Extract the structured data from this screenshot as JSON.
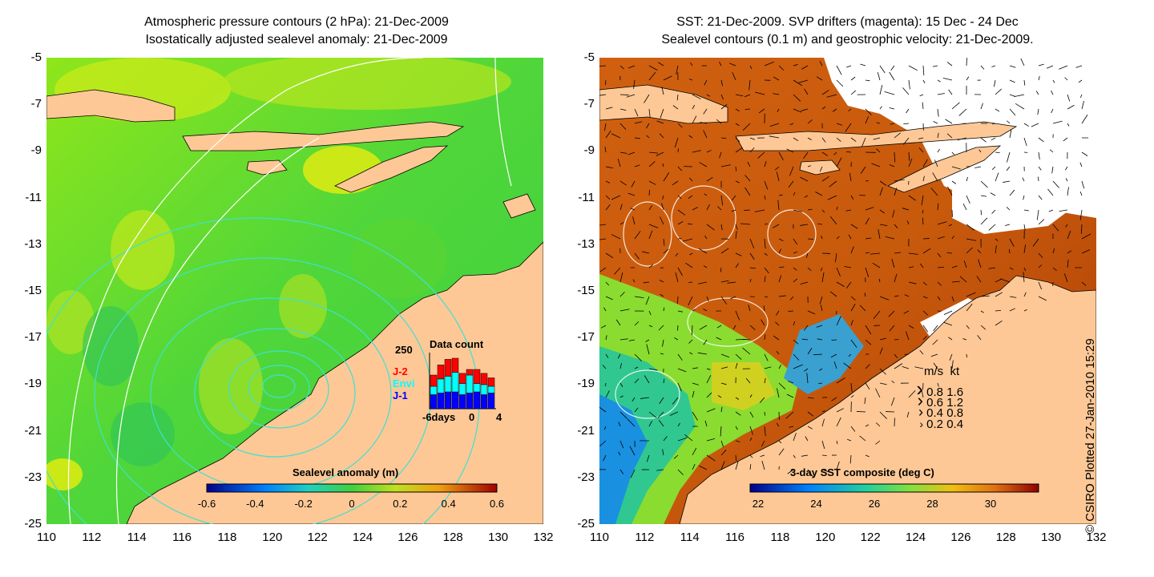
{
  "colors": {
    "land": "#fdc896",
    "cyan_contour": "#40e0d0",
    "white_contour": "#ffffff",
    "drifter": "#ff00ff",
    "j2": "#ff0000",
    "envi": "#00ffff",
    "j1": "#0000ff"
  },
  "left_panel": {
    "title_line1": "Atmospheric pressure contours (2 hPa): 21-Dec-2009",
    "title_line2": "Isostatically adjusted sealevel anomaly: 21-Dec-2009",
    "y_ticks": [
      "-5",
      "-7",
      "-9",
      "-11",
      "-13",
      "-15",
      "-17",
      "-19",
      "-21",
      "-23",
      "-25"
    ],
    "x_ticks": [
      "110",
      "112",
      "114",
      "116",
      "118",
      "120",
      "122",
      "124",
      "126",
      "128",
      "130",
      "132"
    ],
    "colorbar": {
      "title": "Sealevel anomaly (m)",
      "ticks": [
        "-0.6",
        "-0.4",
        "-0.2",
        "0",
        "0.2",
        "0.4",
        "0.6"
      ]
    },
    "histogram": {
      "title": "Data count",
      "ymax_label": "250",
      "x_labels": [
        "-6days",
        "0",
        "4"
      ],
      "legend": [
        "J-2",
        "Envi",
        "J-1"
      ],
      "bars": [
        {
          "j1": 0.25,
          "envi": 0.15,
          "j2": 0.2
        },
        {
          "j1": 0.28,
          "envi": 0.25,
          "j2": 0.25
        },
        {
          "j1": 0.3,
          "envi": 0.28,
          "j2": 0.3
        },
        {
          "j1": 0.3,
          "envi": 0.35,
          "j2": 0.25
        },
        {
          "j1": 0.25,
          "envi": 0.2,
          "j2": 0.18
        },
        {
          "j1": 0.28,
          "envi": 0.32,
          "j2": 0.1
        },
        {
          "j1": 0.3,
          "envi": 0.15,
          "j2": 0.25
        },
        {
          "j1": 0.25,
          "envi": 0.18,
          "j2": 0.2
        },
        {
          "j1": 0.28,
          "envi": 0.12,
          "j2": 0.15
        }
      ]
    }
  },
  "right_panel": {
    "title_line1": "SST: 21-Dec-2009. SVP drifters (magenta): 15 Dec - 24 Dec",
    "title_line2": "Sealevel contours (0.1 m) and geostrophic velocity: 21-Dec-2009.",
    "y_ticks": [
      "-5",
      "-7",
      "-9",
      "-11",
      "-13",
      "-15",
      "-17",
      "-19",
      "-21",
      "-23",
      "-25"
    ],
    "x_ticks": [
      "110",
      "112",
      "114",
      "116",
      "118",
      "120",
      "122",
      "124",
      "126",
      "128",
      "130",
      "132"
    ],
    "colorbar": {
      "title": "3-day SST composite (deg C)",
      "ticks": [
        "22",
        "24",
        "26",
        "28",
        "30"
      ]
    },
    "velocity_legend": {
      "header": [
        "m/s",
        "kt"
      ],
      "rows": [
        {
          "ms": "0.8",
          "kt": "1.6"
        },
        {
          "ms": "0.6",
          "kt": "1.2"
        },
        {
          "ms": "0.4",
          "kt": "0.8"
        },
        {
          "ms": "0.2",
          "kt": "0.4"
        }
      ]
    }
  },
  "copyright": "© CSIRO Plotted 27-Jan-2010 15:29"
}
